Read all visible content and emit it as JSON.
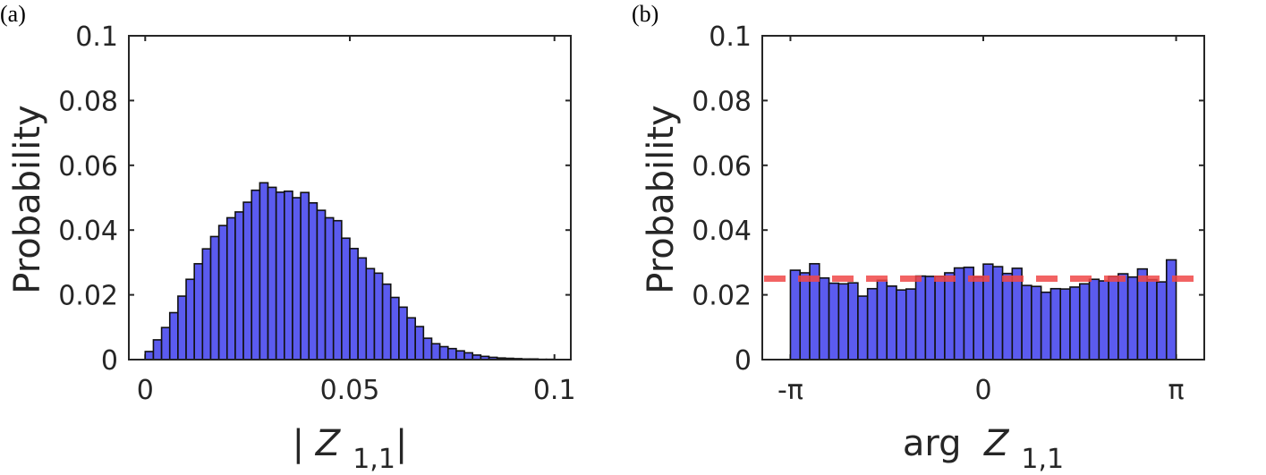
{
  "chart_data": [
    {
      "type": "bar",
      "panel_label": "(a)",
      "title": "",
      "ylabel": "Probability",
      "xlabel": {
        "prefix": "| ",
        "var": "Z",
        "sub": "1,1",
        "suffix": "|"
      },
      "xlim": [
        -0.004,
        0.104
      ],
      "ylim": [
        0,
        0.1
      ],
      "xticks": [
        {
          "value": 0,
          "label": "0"
        },
        {
          "value": 0.05,
          "label": "0.05"
        },
        {
          "value": 0.1,
          "label": "0.1"
        }
      ],
      "yticks": [
        {
          "value": 0,
          "label": "0"
        },
        {
          "value": 0.02,
          "label": "0.02"
        },
        {
          "value": 0.04,
          "label": "0.04"
        },
        {
          "value": 0.06,
          "label": "0.06"
        },
        {
          "value": 0.08,
          "label": "0.08"
        },
        {
          "value": 0.1,
          "label": "0.1"
        }
      ],
      "bin_start": 0,
      "bin_width": 0.002,
      "values": [
        0.0025,
        0.0061,
        0.0099,
        0.0145,
        0.0196,
        0.0248,
        0.0296,
        0.0342,
        0.038,
        0.0414,
        0.0438,
        0.0456,
        0.0486,
        0.0523,
        0.0546,
        0.0532,
        0.0517,
        0.052,
        0.05,
        0.0516,
        0.0484,
        0.0461,
        0.0438,
        0.0429,
        0.0375,
        0.0343,
        0.0314,
        0.0281,
        0.0267,
        0.0233,
        0.0192,
        0.0162,
        0.0129,
        0.0102,
        0.0066,
        0.0049,
        0.004,
        0.0034,
        0.0027,
        0.0021,
        0.0014,
        0.001,
        0.0007,
        0.0005,
        0.0004,
        0.0003,
        0.0002,
        0.0002,
        0.0001,
        0.0001,
        5e-05,
        5e-05
      ],
      "bar_color": "#5b5bef",
      "grid": false
    },
    {
      "type": "bar",
      "panel_label": "(b)",
      "title": "",
      "ylabel": "Probability",
      "xlabel": {
        "prefix": "arg  ",
        "var": "Z",
        "sub": "1,1",
        "suffix": ""
      },
      "xlim": [
        -3.6,
        3.6
      ],
      "ylim": [
        0,
        0.1
      ],
      "xticks": [
        {
          "value": -3.14159,
          "label": "-π"
        },
        {
          "value": 0,
          "label": "0"
        },
        {
          "value": 3.14159,
          "label": "π"
        }
      ],
      "yticks": [
        {
          "value": 0,
          "label": "0"
        },
        {
          "value": 0.02,
          "label": "0.02"
        },
        {
          "value": 0.04,
          "label": "0.04"
        },
        {
          "value": 0.06,
          "label": "0.06"
        },
        {
          "value": 0.08,
          "label": "0.08"
        },
        {
          "value": 0.1,
          "label": "0.1"
        }
      ],
      "bin_start": -3.14159,
      "bin_width": 0.15708,
      "values": [
        0.0276,
        0.0268,
        0.0296,
        0.0252,
        0.0236,
        0.0234,
        0.0237,
        0.0196,
        0.0219,
        0.0245,
        0.0227,
        0.0215,
        0.0218,
        0.0258,
        0.0257,
        0.0257,
        0.0268,
        0.0283,
        0.0285,
        0.0255,
        0.0295,
        0.0287,
        0.0266,
        0.0282,
        0.0229,
        0.0226,
        0.0208,
        0.0219,
        0.0218,
        0.0224,
        0.0234,
        0.0248,
        0.0243,
        0.0257,
        0.0265,
        0.0255,
        0.028,
        0.0247,
        0.024,
        0.0308
      ],
      "bar_color": "#5b5bef",
      "reference_line": {
        "value": 0.025,
        "color": "#f04848",
        "style": "dashed"
      },
      "grid": false
    }
  ]
}
